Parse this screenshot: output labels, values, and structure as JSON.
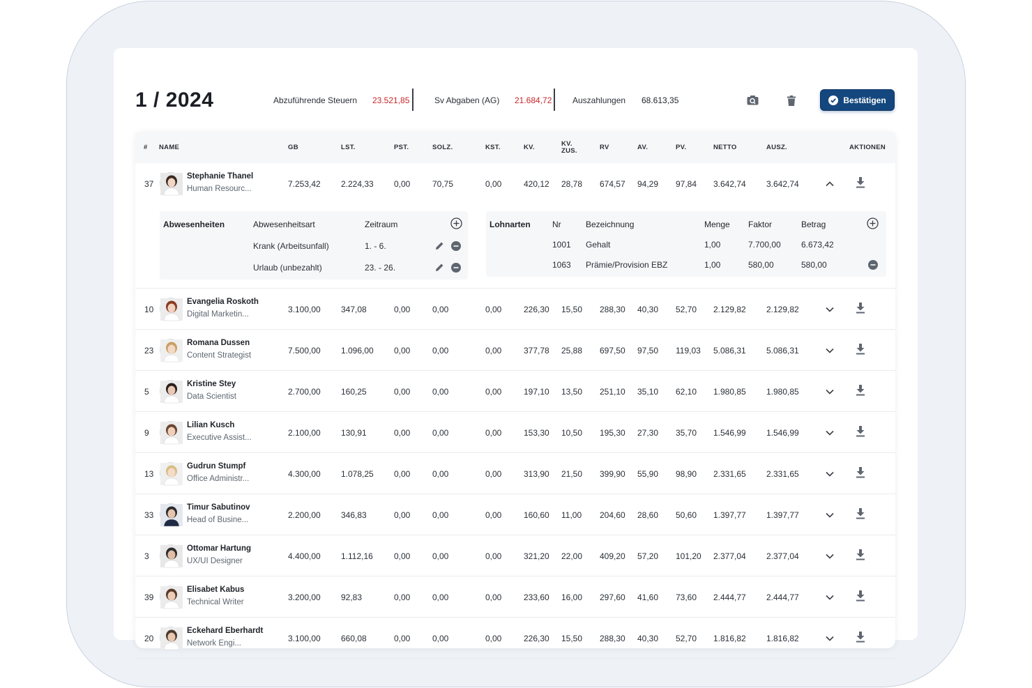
{
  "header": {
    "period": "1 / 2024",
    "stats": [
      {
        "label": "Abzuführende Steuern",
        "value": "23.521,85",
        "color": "#c62828"
      },
      {
        "label": "Sv Abgaben (AG)",
        "value": "21.684,72",
        "color": "#c62828"
      },
      {
        "label": "Auszahlungen",
        "value": "68.613,35",
        "color": "#1f2328"
      }
    ],
    "preview_icon": "camera-search-icon",
    "delete_icon": "trash-icon",
    "confirm_label": "Bestätigen"
  },
  "table": {
    "columns": [
      "#",
      "NAME",
      "GB",
      "LST.",
      "PST.",
      "SOLZ.",
      "KST.",
      "KV.",
      "KV. ZUS.",
      "RV",
      "AV.",
      "PV.",
      "NETTO",
      "AUSZ.",
      "AKTIONEN"
    ],
    "rows": [
      {
        "nr": "37",
        "name": "Stephanie Thanel",
        "role": "Human Resourc...",
        "gb": "7.253,42",
        "lst": "2.224,33",
        "pst": "0,00",
        "solz": "70,75",
        "kst": "0,00",
        "kv": "420,12",
        "kvzus": "28,78",
        "rv": "674,57",
        "av": "94,29",
        "pv": "97,84",
        "netto": "3.642,74",
        "ausz": "3.642,74",
        "expanded": true,
        "avatar": "woman-dark-hair"
      },
      {
        "nr": "10",
        "name": "Evangelia Roskoth",
        "role": "Digital Marketin...",
        "gb": "3.100,00",
        "lst": "347,08",
        "pst": "0,00",
        "solz": "0,00",
        "kst": "0,00",
        "kv": "226,30",
        "kvzus": "15,50",
        "rv": "288,30",
        "av": "40,30",
        "pv": "52,70",
        "netto": "2.129,82",
        "ausz": "2.129,82",
        "expanded": false,
        "avatar": "woman-red-hair"
      },
      {
        "nr": "23",
        "name": "Romana Dussen",
        "role": "Content Strategist",
        "gb": "7.500,00",
        "lst": "1.096,00",
        "pst": "0,00",
        "solz": "0,00",
        "kst": "0,00",
        "kv": "377,78",
        "kvzus": "25,88",
        "rv": "697,50",
        "av": "97,50",
        "pv": "119,03",
        "netto": "5.086,31",
        "ausz": "5.086,31",
        "expanded": false,
        "avatar": "woman-blonde-glasses"
      },
      {
        "nr": "5",
        "name": "Kristine Stey",
        "role": "Data Scientist",
        "gb": "2.700,00",
        "lst": "160,25",
        "pst": "0,00",
        "solz": "0,00",
        "kst": "0,00",
        "kv": "197,10",
        "kvzus": "13,50",
        "rv": "251,10",
        "av": "35,10",
        "pv": "62,10",
        "netto": "1.980,85",
        "ausz": "1.980,85",
        "expanded": false,
        "avatar": "woman-dark-long"
      },
      {
        "nr": "9",
        "name": "Lilian Kusch",
        "role": "Executive Assist...",
        "gb": "2.100,00",
        "lst": "130,91",
        "pst": "0,00",
        "solz": "0,00",
        "kst": "0,00",
        "kv": "153,30",
        "kvzus": "10,50",
        "rv": "195,30",
        "av": "27,30",
        "pv": "35,70",
        "netto": "1.546,99",
        "ausz": "1.546,99",
        "expanded": false,
        "avatar": "woman-brown-hair"
      },
      {
        "nr": "13",
        "name": "Gudrun Stumpf",
        "role": "Office Administr...",
        "gb": "4.300,00",
        "lst": "1.078,25",
        "pst": "0,00",
        "solz": "0,00",
        "kst": "0,00",
        "kv": "313,90",
        "kvzus": "21,50",
        "rv": "399,90",
        "av": "55,90",
        "pv": "98,90",
        "netto": "2.331,65",
        "ausz": "2.331,65",
        "expanded": false,
        "avatar": "woman-blonde"
      },
      {
        "nr": "33",
        "name": "Timur Sabutinov",
        "role": "Head of Busine...",
        "gb": "2.200,00",
        "lst": "346,83",
        "pst": "0,00",
        "solz": "0,00",
        "kst": "0,00",
        "kv": "160,60",
        "kvzus": "11,00",
        "rv": "204,60",
        "av": "28,60",
        "pv": "50,60",
        "netto": "1.397,77",
        "ausz": "1.397,77",
        "expanded": false,
        "avatar": "man-suit"
      },
      {
        "nr": "3",
        "name": "Ottomar Hartung",
        "role": "UX/UI Designer",
        "gb": "4.400,00",
        "lst": "1.112,16",
        "pst": "0,00",
        "solz": "0,00",
        "kst": "0,00",
        "kv": "321,20",
        "kvzus": "22,00",
        "rv": "409,20",
        "av": "57,20",
        "pv": "101,20",
        "netto": "2.377,04",
        "ausz": "2.377,04",
        "expanded": false,
        "avatar": "man-glasses-beard"
      },
      {
        "nr": "39",
        "name": "Elisabet Kabus",
        "role": "Technical Writer",
        "gb": "3.200,00",
        "lst": "92,83",
        "pst": "0,00",
        "solz": "0,00",
        "kst": "0,00",
        "kv": "233,60",
        "kvzus": "16,00",
        "rv": "297,60",
        "av": "41,60",
        "pv": "73,60",
        "netto": "2.444,77",
        "ausz": "2.444,77",
        "expanded": false,
        "avatar": "woman-curly"
      },
      {
        "nr": "20",
        "name": "Eckehard Eberhardt",
        "role": "Network Engi...",
        "gb": "3.100,00",
        "lst": "660,08",
        "pst": "0,00",
        "solz": "0,00",
        "kst": "0,00",
        "kv": "226,30",
        "kvzus": "15,50",
        "rv": "288,30",
        "av": "40,30",
        "pv": "52,70",
        "netto": "1.816,82",
        "ausz": "1.816,82",
        "expanded": false,
        "avatar": "man-short-hair"
      }
    ]
  },
  "absences": {
    "title": "Abwesenheiten",
    "col_type": "Abwesenheitsart",
    "col_period": "Zeitraum",
    "items": [
      {
        "type": "Krank (Arbeitsunfall)",
        "period": "1. - 6."
      },
      {
        "type": "Urlaub (unbezahlt)",
        "period": "23. - 26."
      }
    ]
  },
  "wage_types": {
    "title": "Lohnarten",
    "col_nr": "Nr",
    "col_desc": "Bezeichnung",
    "col_qty": "Menge",
    "col_factor": "Faktor",
    "col_amount": "Betrag",
    "items": [
      {
        "nr": "1001",
        "desc": "Gehalt",
        "qty": "1,00",
        "factor": "7.700,00",
        "amount": "6.673,42",
        "removable": false
      },
      {
        "nr": "1063",
        "desc": "Prämie/Provision EBZ",
        "qty": "1,00",
        "factor": "580,00",
        "amount": "580,00",
        "removable": true
      }
    ]
  }
}
